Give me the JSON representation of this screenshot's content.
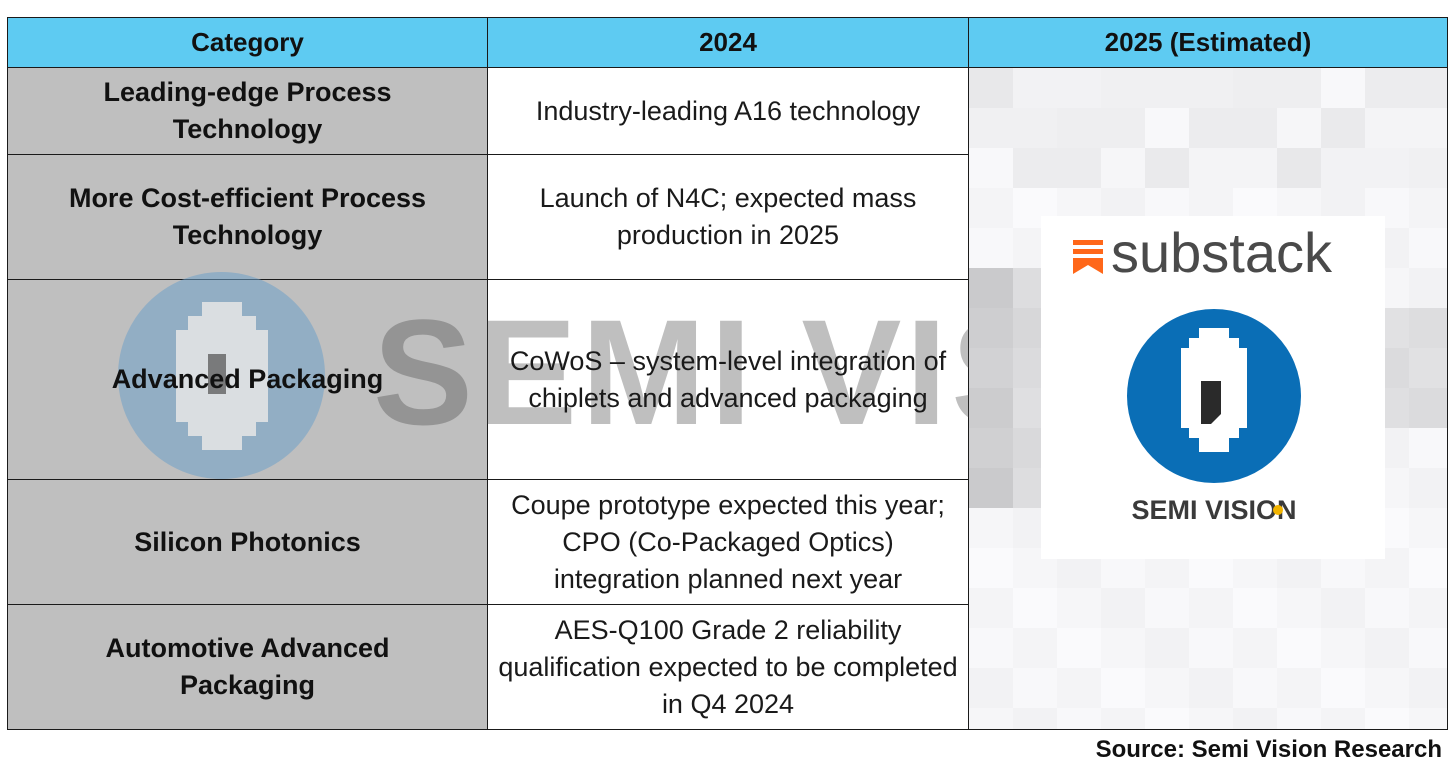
{
  "table": {
    "headers": [
      "Category",
      "2024",
      "2025 (Estimated)"
    ],
    "rows": [
      {
        "category": "Leading-edge Process Technology",
        "value_2024": "Industry-leading A16 technology"
      },
      {
        "category": "More Cost-efficient Process Technology",
        "value_2024": "Launch of N4C; expected mass production in 2025"
      },
      {
        "category": "Advanced Packaging",
        "value_2024": "CoWoS – system-level integration of chiplets and advanced packaging"
      },
      {
        "category": "Silicon Photonics",
        "value_2024": "Coupe prototype expected this year; CPO (Co-Packaged Optics) integration planned next year"
      },
      {
        "category": "Automotive Advanced Packaging",
        "value_2024": "AES-Q100 Grade 2 reliability qualification expected to be completed in Q4 2024"
      }
    ]
  },
  "overlay": {
    "brand": "substack",
    "logo_caption": "SEMI VISION",
    "watermark_text": "SEMI VISION",
    "brand_color": "#ff6719",
    "logo_blue": "#0a6eb6"
  },
  "source": "Source: Semi Vision Research",
  "colors": {
    "header_bg": "#5ecbf2",
    "category_bg": "#bfbfbf"
  }
}
